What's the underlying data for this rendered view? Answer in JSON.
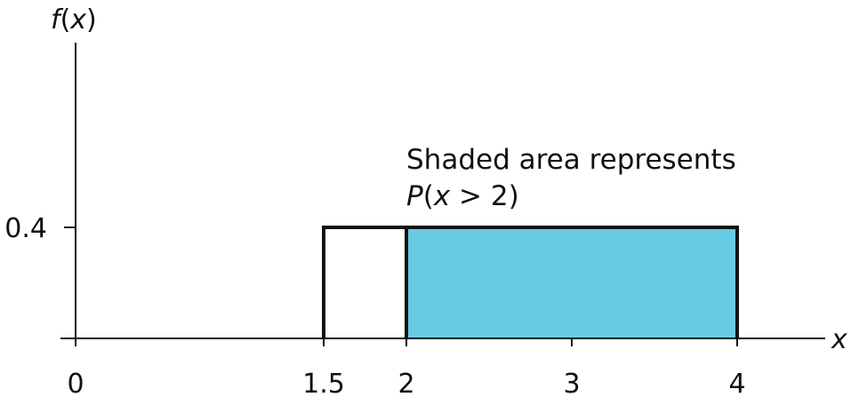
{
  "chart_data": {
    "type": "area",
    "title": "",
    "ylabel_func": "f",
    "ylabel_paren_open": "(",
    "ylabel_var": "x",
    "ylabel_paren_close": ")",
    "xlabel": "x",
    "x_ticks": [
      {
        "value": 0,
        "label": "0"
      },
      {
        "value": 1.5,
        "label": "1.5"
      },
      {
        "value": 2,
        "label": "2"
      },
      {
        "value": 3,
        "label": "3"
      },
      {
        "value": 4,
        "label": "4"
      }
    ],
    "y_ticks": [
      {
        "value": 0.4,
        "label": "0.4"
      }
    ],
    "xlim": [
      0,
      4.6
    ],
    "ylim": [
      0,
      0.75
    ],
    "distribution": {
      "x_start": 1.5,
      "x_end": 4,
      "height": 0.4
    },
    "shaded_region": {
      "x_start": 2,
      "x_end": 4,
      "height": 0.4
    },
    "annotation": {
      "line1": "Shaded area represents",
      "prob_P": "P",
      "prob_open": "(",
      "prob_var": "x",
      "prob_rest": " > 2)"
    },
    "colors": {
      "shade": "#67cce3",
      "stroke": "#111111"
    }
  }
}
